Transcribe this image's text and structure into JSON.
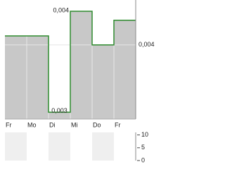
{
  "chart_data": {
    "type": "line",
    "categories": [
      "Fr",
      "Mo",
      "Di",
      "Mi",
      "Do",
      "Fr"
    ],
    "series": [
      {
        "color": "#2e8b2e",
        "values": [
          0.00408,
          0.00408,
          0.0034,
          0.0043,
          0.004,
          0.00422
        ],
        "value_labels": [
          null,
          null,
          "0,003",
          "0,004",
          null,
          null
        ]
      }
    ],
    "ylim": [
      0.00334,
      0.0044
    ],
    "yticks": [
      {
        "value": 0.004,
        "label": "0,004"
      }
    ],
    "fill": "#c8c8c8",
    "grid": true,
    "volume_ylim": [
      0,
      11
    ],
    "volume_yticks": [
      0,
      5,
      10
    ]
  }
}
